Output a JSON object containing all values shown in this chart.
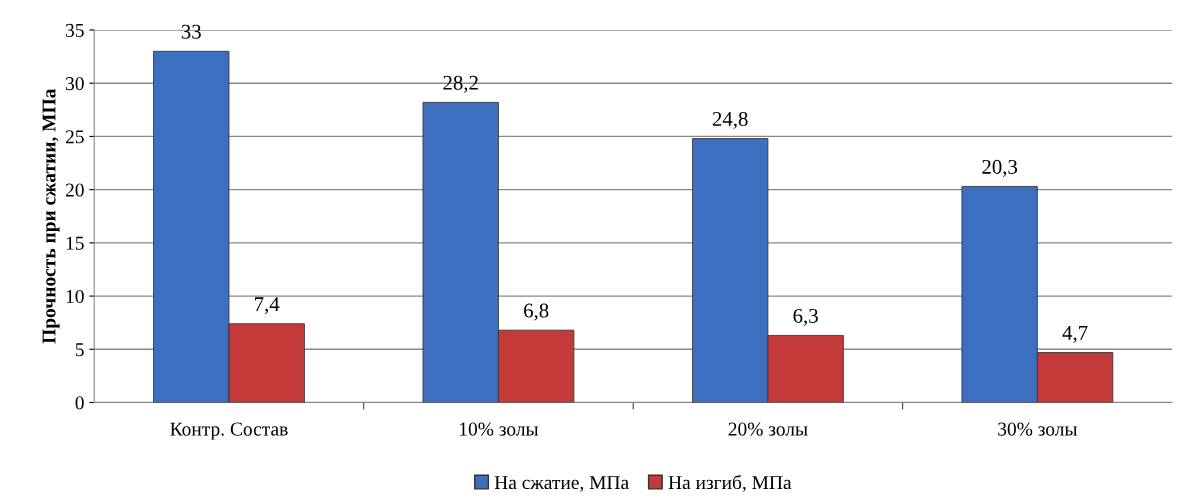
{
  "chart_data": {
    "type": "bar",
    "ylabel": "Прочность при сжатии, МПа",
    "categories": [
      "Контр. Состав",
      "10% золы",
      "20% золы",
      "30% золы"
    ],
    "series": [
      {
        "name": "На сжатие, МПа",
        "color": "#3c6fc0",
        "values": [
          33,
          28.2,
          24.8,
          20.3
        ],
        "value_labels": [
          "33",
          "28,2",
          "24,8",
          "20,3"
        ]
      },
      {
        "name": "На изгиб, МПа",
        "color": "#c43a38",
        "values": [
          7.4,
          6.8,
          6.3,
          4.7
        ],
        "value_labels": [
          "7,4",
          "6,8",
          "6,3",
          "4,7"
        ]
      }
    ],
    "ylim": [
      0,
      35
    ],
    "yticks": [
      0,
      5,
      10,
      15,
      20,
      25,
      30,
      35
    ],
    "grid": "y",
    "legend": "bottom"
  }
}
